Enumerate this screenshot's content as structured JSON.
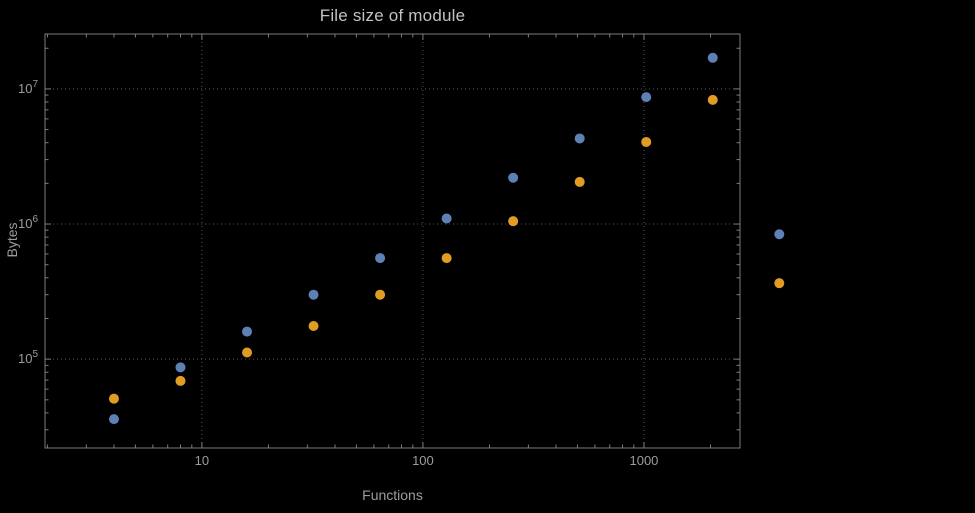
{
  "chart_data": {
    "type": "scatter",
    "title": "File size of module",
    "xlabel": "Functions",
    "ylabel": "Bytes",
    "xscale": "log",
    "yscale": "log",
    "grid": "dotted-major-only",
    "legend": "none",
    "xlim": [
      1.95,
      2720
    ],
    "ylim": [
      22000,
      25500000
    ],
    "x_ticks": [
      10,
      100,
      1000
    ],
    "x_tick_labels": [
      "10",
      "100",
      "1000"
    ],
    "y_ticks": [
      100000,
      1000000,
      10000000
    ],
    "y_tick_base": "10",
    "y_tick_exponents": [
      "5",
      "6",
      "7"
    ],
    "x": [
      4,
      8,
      16,
      32,
      64,
      128,
      256,
      512,
      1024,
      2048,
      4096
    ],
    "series": [
      {
        "name": "series-blue",
        "color": "#5e81b5",
        "values": [
          36000,
          87000,
          160000,
          300000,
          560000,
          1100000,
          2200000,
          4300000,
          8700000,
          17000000,
          840000
        ]
      },
      {
        "name": "series-orange",
        "color": "#e19c24",
        "values": [
          51000,
          69000,
          112000,
          176000,
          300000,
          560000,
          1050000,
          2050000,
          4050000,
          8300000,
          365000
        ]
      }
    ],
    "colors": {
      "background": "#000000",
      "frame": "#7d7d7d",
      "grid": "#545454",
      "tick_text": "#9c9c9c",
      "axis_label_text": "#9c9c9c",
      "title_text": "#c2c2c2"
    }
  }
}
